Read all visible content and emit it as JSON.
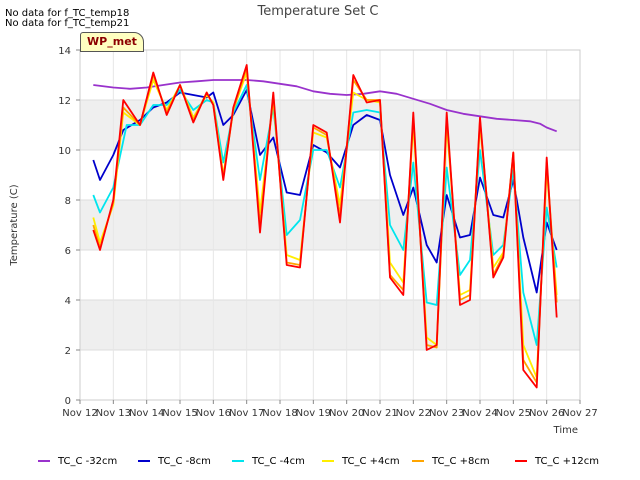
{
  "notes": [
    "No data for f_TC_temp18",
    "No data for f_TC_temp21"
  ],
  "station_label": "WP_met",
  "chart_data": {
    "type": "line",
    "title": "Temperature Set C",
    "xlabel": "Time",
    "ylabel": "Temperature (C)",
    "ylim": [
      0,
      14
    ],
    "xlim": [
      12,
      27
    ],
    "yticks": [
      0,
      2,
      4,
      6,
      8,
      10,
      12,
      14
    ],
    "xticks": [
      12,
      13,
      14,
      15,
      16,
      17,
      18,
      19,
      20,
      21,
      22,
      23,
      24,
      25,
      26,
      27
    ],
    "xtick_labels": [
      "Nov 12",
      "Nov 13",
      "Nov 14",
      "Nov 15",
      "Nov 16",
      "Nov 17",
      "Nov 18",
      "Nov 19",
      "Nov 20",
      "Nov 21",
      "Nov 22",
      "Nov 23",
      "Nov 24",
      "Nov 25",
      "Nov 26",
      "Nov 27"
    ],
    "grid": true,
    "legend_position": "bottom",
    "series": [
      {
        "name": "TC_C -32cm",
        "color": "#9932cc",
        "x": [
          12.4,
          13.0,
          13.5,
          14.0,
          14.5,
          15.0,
          15.5,
          16.0,
          16.5,
          17.0,
          17.5,
          18.0,
          18.5,
          19.0,
          19.5,
          20.0,
          20.5,
          21.0,
          21.5,
          22.0,
          22.5,
          23.0,
          23.5,
          24.0,
          24.5,
          25.0,
          25.5,
          25.8,
          26.0,
          26.3
        ],
        "values": [
          12.6,
          12.5,
          12.45,
          12.5,
          12.6,
          12.7,
          12.75,
          12.8,
          12.8,
          12.8,
          12.75,
          12.65,
          12.55,
          12.35,
          12.25,
          12.2,
          12.25,
          12.35,
          12.25,
          12.05,
          11.85,
          11.6,
          11.45,
          11.35,
          11.25,
          11.2,
          11.15,
          11.05,
          10.9,
          10.75
        ]
      },
      {
        "name": "TC_C -8cm",
        "color": "#0000cc",
        "x": [
          12.4,
          12.6,
          13.0,
          13.3,
          13.8,
          14.2,
          14.6,
          15.0,
          15.4,
          15.8,
          16.0,
          16.3,
          16.6,
          17.0,
          17.4,
          17.8,
          18.2,
          18.6,
          19.0,
          19.4,
          19.8,
          20.2,
          20.6,
          21.0,
          21.3,
          21.7,
          22.0,
          22.4,
          22.7,
          23.0,
          23.4,
          23.7,
          24.0,
          24.4,
          24.7,
          25.0,
          25.3,
          25.7,
          26.0,
          26.3
        ],
        "values": [
          9.6,
          8.8,
          9.8,
          10.8,
          11.2,
          11.7,
          11.9,
          12.3,
          12.2,
          12.1,
          12.3,
          11.0,
          11.4,
          12.4,
          9.8,
          10.5,
          8.3,
          8.2,
          10.2,
          9.9,
          9.3,
          11.0,
          11.4,
          11.2,
          9.0,
          7.4,
          8.5,
          6.2,
          5.5,
          8.2,
          6.5,
          6.6,
          8.9,
          7.4,
          7.3,
          8.8,
          6.5,
          4.3,
          7.1,
          6.0
        ]
      },
      {
        "name": "TC_C -4cm",
        "color": "#00e5ee",
        "x": [
          12.4,
          12.6,
          13.0,
          13.4,
          13.8,
          14.2,
          14.6,
          15.0,
          15.4,
          15.8,
          16.0,
          16.3,
          16.6,
          17.0,
          17.4,
          17.8,
          18.2,
          18.6,
          19.0,
          19.4,
          19.8,
          20.2,
          20.6,
          21.0,
          21.3,
          21.7,
          22.0,
          22.4,
          22.7,
          23.0,
          23.4,
          23.7,
          24.0,
          24.4,
          24.7,
          25.0,
          25.3,
          25.7,
          26.0,
          26.3
        ],
        "values": [
          8.2,
          7.5,
          8.5,
          11.0,
          11.0,
          11.8,
          11.8,
          12.4,
          11.6,
          12.0,
          11.9,
          9.5,
          11.5,
          12.6,
          8.8,
          11.7,
          6.6,
          7.2,
          10.0,
          10.0,
          8.5,
          11.5,
          11.6,
          11.5,
          7.0,
          6.0,
          9.5,
          3.9,
          3.8,
          9.3,
          5.0,
          5.6,
          10.0,
          5.8,
          6.2,
          9.2,
          4.3,
          2.2,
          7.7,
          5.3
        ]
      },
      {
        "name": "TC_C +4cm",
        "color": "#ffee00",
        "x": [
          12.4,
          12.6,
          13.0,
          13.3,
          13.8,
          14.2,
          14.6,
          15.0,
          15.4,
          15.8,
          16.0,
          16.3,
          16.6,
          17.0,
          17.4,
          17.8,
          18.2,
          18.6,
          19.0,
          19.4,
          19.8,
          20.2,
          20.6,
          21.0,
          21.3,
          21.7,
          22.0,
          22.4,
          22.7,
          23.0,
          23.4,
          23.7,
          24.0,
          24.4,
          24.7,
          25.0,
          25.3,
          25.7,
          26.0,
          26.3
        ],
        "values": [
          7.3,
          6.3,
          7.8,
          11.5,
          11.0,
          12.8,
          11.6,
          12.6,
          11.3,
          12.2,
          11.9,
          9.0,
          11.6,
          13.1,
          7.5,
          12.0,
          5.8,
          5.6,
          10.7,
          10.5,
          7.8,
          12.3,
          12.0,
          11.9,
          5.5,
          4.7,
          11.0,
          2.5,
          2.2,
          11.0,
          4.2,
          4.4,
          11.0,
          5.3,
          5.9,
          9.8,
          2.2,
          0.9,
          9.2,
          4.2
        ]
      },
      {
        "name": "TC_C +8cm",
        "color": "#ffa500",
        "x": [
          12.4,
          12.6,
          13.0,
          13.3,
          13.8,
          14.2,
          14.6,
          15.0,
          15.4,
          15.8,
          16.0,
          16.3,
          16.6,
          17.0,
          17.4,
          17.8,
          18.2,
          18.6,
          19.0,
          19.4,
          19.8,
          20.2,
          20.6,
          21.0,
          21.3,
          21.7,
          22.0,
          22.4,
          22.7,
          23.0,
          23.4,
          23.7,
          24.0,
          24.4,
          24.7,
          25.0,
          25.3,
          25.7,
          26.0,
          26.3
        ],
        "values": [
          7.0,
          6.1,
          7.9,
          11.7,
          11.0,
          13.0,
          11.5,
          12.6,
          11.2,
          12.3,
          11.8,
          8.9,
          11.6,
          13.3,
          7.0,
          12.2,
          5.5,
          5.4,
          10.9,
          10.6,
          7.4,
          12.8,
          12.0,
          12.0,
          5.0,
          4.4,
          11.3,
          2.2,
          2.1,
          11.3,
          4.0,
          4.2,
          11.2,
          5.0,
          5.8,
          9.9,
          1.6,
          0.7,
          9.5,
          3.9
        ]
      },
      {
        "name": "TC_C +12cm",
        "color": "#ff0000",
        "x": [
          12.4,
          12.6,
          13.0,
          13.3,
          13.8,
          14.2,
          14.6,
          15.0,
          15.4,
          15.8,
          16.0,
          16.3,
          16.6,
          17.0,
          17.4,
          17.8,
          18.2,
          18.6,
          19.0,
          19.4,
          19.8,
          20.2,
          20.6,
          21.0,
          21.3,
          21.7,
          22.0,
          22.4,
          22.7,
          23.0,
          23.4,
          23.7,
          24.0,
          24.4,
          24.7,
          25.0,
          25.3,
          25.7,
          26.0,
          26.3
        ],
        "values": [
          6.8,
          6.0,
          8.0,
          12.0,
          11.0,
          13.1,
          11.4,
          12.6,
          11.1,
          12.3,
          11.8,
          8.8,
          11.7,
          13.4,
          6.7,
          12.3,
          5.4,
          5.3,
          11.0,
          10.7,
          7.1,
          13.0,
          11.9,
          12.0,
          4.9,
          4.2,
          11.5,
          2.0,
          2.2,
          11.5,
          3.8,
          4.0,
          11.3,
          4.9,
          5.7,
          9.9,
          1.2,
          0.5,
          9.7,
          3.3
        ]
      }
    ]
  }
}
